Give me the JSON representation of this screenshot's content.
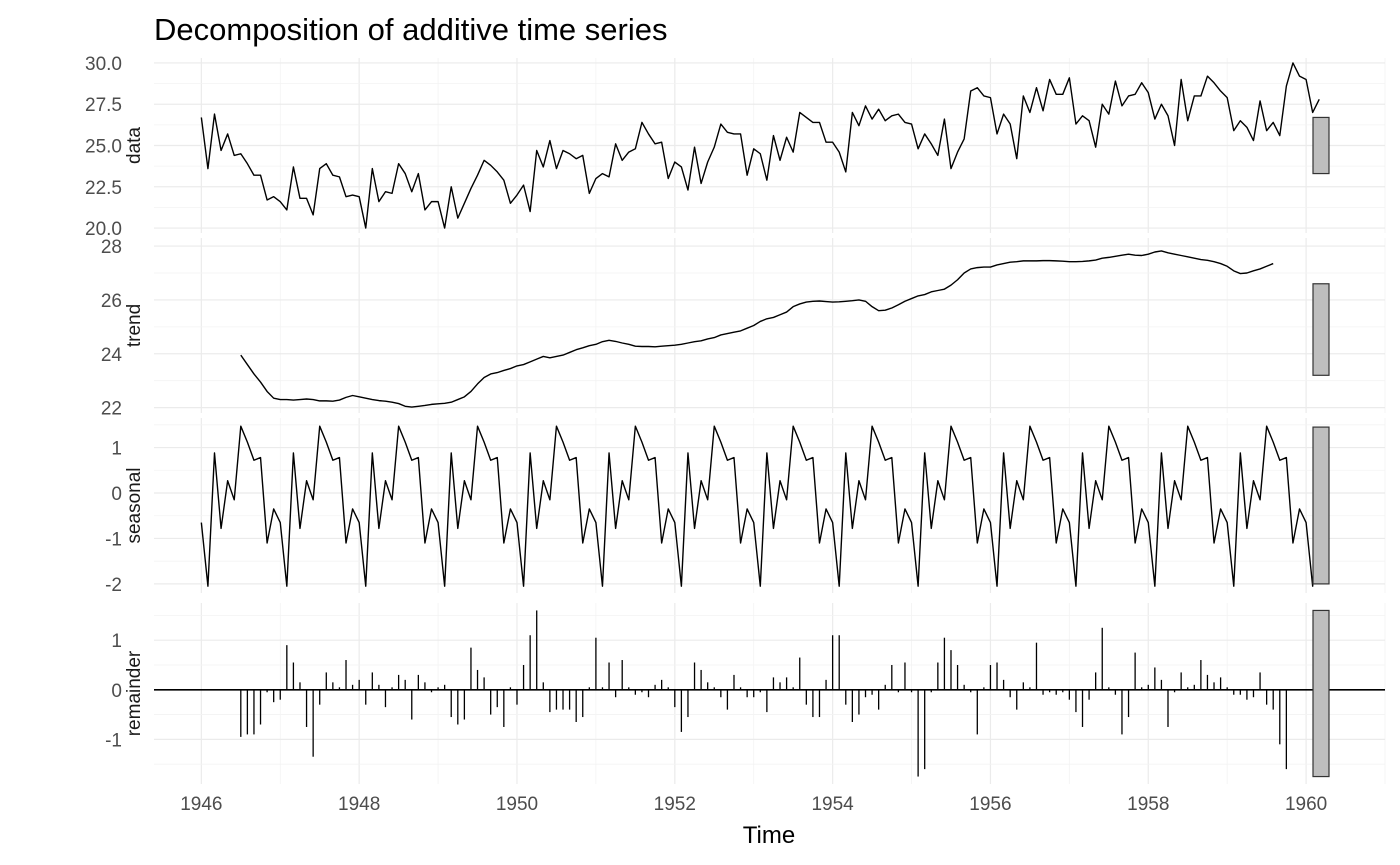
{
  "chart_data": {
    "type": "line",
    "title": "Decomposition of additive time series",
    "xlabel": "Time",
    "x_start": 1946.0,
    "frequency": 12,
    "xlim": [
      1945.4,
      1961.0
    ],
    "x_ticks": [
      1946,
      1948,
      1950,
      1952,
      1954,
      1956,
      1958,
      1960
    ],
    "x_tick_labels": [
      "1946",
      "1948",
      "1950",
      "1952",
      "1954",
      "1956",
      "1958",
      "1960"
    ],
    "panels": [
      {
        "name": "data",
        "ylim": [
          19.7,
          30.3
        ],
        "y_ticks": [
          20,
          22.5,
          25,
          27.5,
          30
        ],
        "y_tick_labels": [
          "20.0",
          "22.5",
          "25.0",
          "27.5",
          "30.0"
        ],
        "range_bar": [
          23.3,
          26.7
        ],
        "style": "line",
        "values": [
          26.7,
          23.6,
          26.9,
          24.7,
          25.7,
          24.4,
          24.5,
          23.9,
          23.2,
          23.2,
          21.7,
          21.9,
          21.6,
          21.1,
          23.7,
          21.8,
          21.8,
          20.8,
          23.6,
          23.9,
          23.2,
          23.1,
          21.9,
          22.0,
          21.9,
          20.0,
          23.6,
          21.6,
          22.2,
          22.1,
          23.9,
          23.3,
          22.2,
          23.3,
          21.1,
          21.6,
          21.6,
          20.0,
          22.5,
          20.6,
          21.5,
          22.4,
          23.2,
          24.1,
          23.8,
          23.4,
          22.9,
          21.5,
          22.0,
          22.6,
          21.0,
          24.7,
          23.7,
          25.3,
          23.6,
          24.7,
          24.5,
          24.2,
          24.4,
          22.1,
          23.0,
          23.3,
          23.1,
          25.1,
          24.1,
          24.6,
          24.8,
          26.4,
          25.7,
          25.1,
          25.2,
          23.0,
          24.0,
          23.7,
          22.3,
          24.9,
          22.7,
          24.0,
          24.9,
          26.3,
          25.8,
          25.7,
          25.7,
          23.2,
          24.8,
          24.5,
          22.9,
          25.6,
          24.1,
          25.5,
          24.6,
          27.0,
          26.7,
          26.4,
          26.4,
          25.2,
          25.2,
          24.6,
          23.4,
          27.0,
          26.2,
          27.4,
          26.6,
          27.2,
          26.5,
          26.8,
          26.9,
          26.4,
          26.3,
          24.8,
          25.7,
          25.1,
          24.4,
          26.6,
          23.6,
          24.6,
          25.4,
          28.3,
          28.5,
          28.0,
          27.9,
          25.7,
          26.9,
          26.3,
          24.2,
          28.0,
          27.0,
          28.5,
          27.1,
          29.0,
          28.1,
          28.1,
          29.1,
          26.3,
          26.8,
          26.5,
          24.9,
          27.5,
          26.9,
          28.9,
          27.4,
          28.0,
          28.1,
          28.8,
          28.2,
          26.6,
          27.5,
          26.8,
          25.0,
          29.0,
          26.5,
          28.0,
          28.0,
          29.2,
          28.8,
          28.3,
          27.9,
          25.9,
          26.5,
          26.1,
          25.3,
          27.7,
          25.9,
          26.4,
          25.6,
          28.6,
          30.0,
          29.2,
          29.0,
          27.0,
          27.8
        ]
      },
      {
        "name": "trend",
        "ylim": [
          21.8,
          28.3
        ],
        "y_ticks": [
          22,
          24,
          26,
          28
        ],
        "y_tick_labels": [
          "22",
          "24",
          "26",
          "28"
        ],
        "range_bar": [
          23.2,
          26.6
        ],
        "style": "line",
        "t_start": 1946.5,
        "values": [
          23.95,
          23.6,
          23.25,
          22.95,
          22.6,
          22.35,
          22.3,
          22.3,
          22.28,
          22.3,
          22.32,
          22.3,
          22.25,
          22.25,
          22.24,
          22.28,
          22.38,
          22.45,
          22.4,
          22.35,
          22.3,
          22.26,
          22.24,
          22.2,
          22.15,
          22.05,
          22.02,
          22.05,
          22.08,
          22.12,
          22.14,
          22.16,
          22.2,
          22.3,
          22.4,
          22.6,
          22.88,
          23.12,
          23.25,
          23.3,
          23.38,
          23.45,
          23.55,
          23.6,
          23.7,
          23.8,
          23.9,
          23.85,
          23.9,
          23.95,
          24.05,
          24.15,
          24.22,
          24.3,
          24.35,
          24.45,
          24.5,
          24.46,
          24.4,
          24.35,
          24.28,
          24.27,
          24.27,
          24.26,
          24.28,
          24.3,
          24.32,
          24.35,
          24.4,
          24.45,
          24.48,
          24.55,
          24.6,
          24.7,
          24.75,
          24.8,
          24.85,
          24.95,
          25.05,
          25.2,
          25.3,
          25.35,
          25.45,
          25.55,
          25.75,
          25.85,
          25.92,
          25.95,
          25.96,
          25.94,
          25.92,
          25.93,
          25.95,
          25.97,
          26.0,
          25.95,
          25.75,
          25.6,
          25.62,
          25.7,
          25.82,
          25.95,
          26.05,
          26.15,
          26.2,
          26.3,
          26.35,
          26.4,
          26.55,
          26.75,
          27.0,
          27.15,
          27.2,
          27.22,
          27.22,
          27.3,
          27.35,
          27.4,
          27.42,
          27.45,
          27.45,
          27.45,
          27.46,
          27.46,
          27.45,
          27.44,
          27.42,
          27.42,
          27.43,
          27.45,
          27.48,
          27.55,
          27.58,
          27.62,
          27.66,
          27.7,
          27.66,
          27.65,
          27.7,
          27.78,
          27.82,
          27.75,
          27.7,
          27.65,
          27.6,
          27.55,
          27.5,
          27.47,
          27.42,
          27.35,
          27.25,
          27.08,
          26.98,
          27.0,
          27.08,
          27.15,
          27.25,
          27.35
        ]
      },
      {
        "name": "seasonal",
        "ylim": [
          -2.2,
          1.65
        ],
        "y_ticks": [
          -2,
          -1,
          0,
          1
        ],
        "y_tick_labels": [
          "-2",
          "-1",
          "0",
          "1"
        ],
        "range_bar": [
          -2.0,
          1.45
        ],
        "style": "line",
        "pattern": [
          -0.65,
          -2.05,
          0.88,
          -0.78,
          0.27,
          -0.15,
          1.47,
          1.12,
          0.72,
          0.78,
          -1.1,
          -0.35
        ],
        "values": [
          -0.65,
          -2.05,
          0.88,
          -0.78,
          0.27,
          -0.15,
          1.47,
          1.12,
          0.72,
          0.78,
          -1.1,
          -0.35,
          -0.65,
          -2.05,
          0.88,
          -0.78,
          0.27,
          -0.15,
          1.47,
          1.12,
          0.72,
          0.78,
          -1.1,
          -0.35,
          -0.65,
          -2.05,
          0.88,
          -0.78,
          0.27,
          -0.15,
          1.47,
          1.12,
          0.72,
          0.78,
          -1.1,
          -0.35,
          -0.65,
          -2.05,
          0.88,
          -0.78,
          0.27,
          -0.15,
          1.47,
          1.12,
          0.72,
          0.78,
          -1.1,
          -0.35,
          -0.65,
          -2.05,
          0.88,
          -0.78,
          0.27,
          -0.15,
          1.47,
          1.12,
          0.72,
          0.78,
          -1.1,
          -0.35,
          -0.65,
          -2.05,
          0.88,
          -0.78,
          0.27,
          -0.15,
          1.47,
          1.12,
          0.72,
          0.78,
          -1.1,
          -0.35,
          -0.65,
          -2.05,
          0.88,
          -0.78,
          0.27,
          -0.15,
          1.47,
          1.12,
          0.72,
          0.78,
          -1.1,
          -0.35,
          -0.65,
          -2.05,
          0.88,
          -0.78,
          0.27,
          -0.15,
          1.47,
          1.12,
          0.72,
          0.78,
          -1.1,
          -0.35,
          -0.65,
          -2.05,
          0.88,
          -0.78,
          0.27,
          -0.15,
          1.47,
          1.12,
          0.72,
          0.78,
          -1.1,
          -0.35,
          -0.65,
          -2.05,
          0.88,
          -0.78,
          0.27,
          -0.15,
          1.47,
          1.12,
          0.72,
          0.78,
          -1.1,
          -0.35,
          -0.65,
          -2.05,
          0.88,
          -0.78,
          0.27,
          -0.15,
          1.47,
          1.12,
          0.72,
          0.78,
          -1.1,
          -0.35,
          -0.65,
          -2.05,
          0.88,
          -0.78,
          0.27,
          -0.15,
          1.47,
          1.12,
          0.72,
          0.78,
          -1.1,
          -0.35,
          -0.65,
          -2.05,
          0.88,
          -0.78,
          0.27,
          -0.15,
          1.47,
          1.12,
          0.72,
          0.78,
          -1.1,
          -0.35,
          -0.65,
          -2.05,
          0.88,
          -0.78,
          0.27,
          -0.15,
          1.47,
          1.12,
          0.72,
          0.78,
          -1.1,
          -0.35,
          -0.65,
          -2.05,
          0.88
        ]
      },
      {
        "name": "remainder",
        "ylim": [
          -1.9,
          1.75
        ],
        "y_ticks": [
          -1,
          0,
          1
        ],
        "y_tick_labels": [
          "-1",
          "0",
          "1"
        ],
        "range_bar": [
          -1.75,
          1.6
        ],
        "style": "bars",
        "t_start": 1946.5,
        "values": [
          -0.95,
          -0.9,
          -0.9,
          -0.7,
          -0.05,
          -0.25,
          -0.2,
          0.9,
          0.55,
          0.15,
          -0.75,
          -1.35,
          -0.3,
          0.35,
          0.15,
          0.05,
          0.6,
          0.1,
          0.2,
          -0.3,
          0.35,
          0.1,
          -0.35,
          0.05,
          0.3,
          0.2,
          -0.6,
          0.3,
          0.15,
          -0.05,
          0.05,
          0.1,
          -0.55,
          -0.7,
          -0.6,
          0.85,
          0.4,
          0.25,
          -0.5,
          -0.35,
          -0.75,
          0.05,
          -0.3,
          0.5,
          1.1,
          1.6,
          0.15,
          -0.45,
          -0.4,
          -0.4,
          -0.4,
          -0.65,
          -0.55,
          0.05,
          1.05,
          0.05,
          0.55,
          -0.15,
          0.6,
          0.05,
          -0.1,
          -0.05,
          -0.15,
          0.1,
          0.2,
          0.05,
          -0.35,
          -0.85,
          -0.55,
          0.55,
          0.4,
          0.15,
          0.05,
          -0.15,
          -0.4,
          0.3,
          0.05,
          -0.15,
          -0.15,
          -0.05,
          -0.45,
          0.25,
          0.15,
          0.25,
          0.05,
          0.65,
          -0.3,
          -0.55,
          -0.55,
          0.2,
          1.1,
          1.1,
          -0.3,
          -0.65,
          -0.5,
          -0.15,
          -0.1,
          -0.4,
          0.1,
          0.5,
          -0.05,
          0.55,
          -0.05,
          -1.75,
          -1.6,
          -0.05,
          0.55,
          1.05,
          0.8,
          0.5,
          0.1,
          -0.05,
          -0.9,
          0.05,
          0.5,
          0.55,
          0.2,
          -0.15,
          -0.4,
          0.15,
          0.05,
          0.95,
          -0.1,
          -0.05,
          -0.1,
          -0.05,
          -0.2,
          -0.45,
          -0.75,
          -0.2,
          0.35,
          1.25,
          0.05,
          -0.1,
          -0.9,
          -0.55,
          0.75,
          0.05,
          0.1,
          0.45,
          0.2,
          -0.75,
          -0.05,
          0.35,
          0.05,
          0.1,
          0.6,
          0.3,
          0.15,
          0.25,
          0.05,
          -0.1,
          -0.1,
          -0.2,
          -0.15,
          0.35,
          -0.3,
          -0.4,
          -1.1,
          -1.6
        ]
      }
    ]
  }
}
